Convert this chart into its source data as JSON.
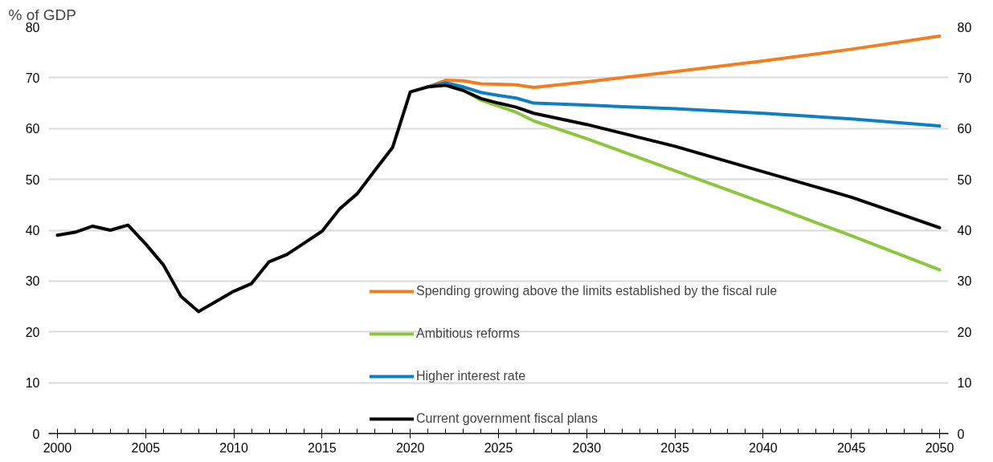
{
  "chart_data": {
    "type": "line",
    "ylabel": "% of GDP",
    "xlim": [
      1999.5,
      2050.5
    ],
    "xticks": [
      2000,
      {
        "value": 2001,
        "label": null
      },
      {
        "value": 2002,
        "label": null
      },
      {
        "value": 2003,
        "label": null
      },
      {
        "value": 2004,
        "label": null
      },
      2005,
      {
        "value": 2006,
        "label": null
      },
      {
        "value": 2007,
        "label": null
      },
      {
        "value": 2008,
        "label": null
      },
      {
        "value": 2009,
        "label": null
      },
      2010,
      {
        "value": 2011,
        "label": null
      },
      {
        "value": 2012,
        "label": null
      },
      {
        "value": 2013,
        "label": null
      },
      {
        "value": 2014,
        "label": null
      },
      2015,
      {
        "value": 2016,
        "label": null
      },
      {
        "value": 2017,
        "label": null
      },
      {
        "value": 2018,
        "label": null
      },
      {
        "value": 2019,
        "label": null
      },
      2020,
      {
        "value": 2021,
        "label": null
      },
      {
        "value": 2022,
        "label": null
      },
      {
        "value": 2023,
        "label": null
      },
      {
        "value": 2024,
        "label": null
      },
      2025,
      {
        "value": 2026,
        "label": null
      },
      {
        "value": 2027,
        "label": null
      },
      {
        "value": 2028,
        "label": null
      },
      {
        "value": 2029,
        "label": null
      },
      2030,
      {
        "value": 2031,
        "label": null
      },
      {
        "value": 2032,
        "label": null
      },
      {
        "value": 2033,
        "label": null
      },
      {
        "value": 2034,
        "label": null
      },
      2035,
      {
        "value": 2036,
        "label": null
      },
      {
        "value": 2037,
        "label": null
      },
      {
        "value": 2038,
        "label": null
      },
      {
        "value": 2039,
        "label": null
      },
      2040,
      {
        "value": 2041,
        "label": null
      },
      {
        "value": 2042,
        "label": null
      },
      {
        "value": 2043,
        "label": null
      },
      {
        "value": 2044,
        "label": null
      },
      2045,
      {
        "value": 2046,
        "label": null
      },
      {
        "value": 2047,
        "label": null
      },
      {
        "value": 2048,
        "label": null
      },
      {
        "value": 2049,
        "label": null
      },
      2050
    ],
    "ylim": [
      0,
      80
    ],
    "yticks": [
      0,
      10,
      20,
      30,
      40,
      50,
      60,
      70,
      80
    ],
    "y2lim": [
      0,
      80
    ],
    "y2ticks": [
      0,
      10,
      20,
      30,
      40,
      50,
      60,
      70,
      80
    ],
    "grid": "y",
    "legend": "bottom",
    "line_style": "solid",
    "series": [
      {
        "name": "Spending growing above the limits established by the fiscal rule",
        "color": "#f47d20",
        "x": [
          2021,
          2022,
          2023,
          2024,
          2025,
          2026,
          2027,
          2030,
          2035,
          2040,
          2045,
          2050
        ],
        "values": [
          68.2,
          69.5,
          69.4,
          68.8,
          68.7,
          68.6,
          68.1,
          69.2,
          71.2,
          73.3,
          75.6,
          78.2
        ]
      },
      {
        "name": "Ambitious reforms",
        "color": "#8cc63f",
        "x": [
          2021,
          2022,
          2023,
          2024,
          2025,
          2026,
          2027,
          2030,
          2035,
          2040,
          2045,
          2050
        ],
        "values": [
          68.2,
          68.6,
          67.5,
          65.6,
          64.4,
          63.2,
          61.5,
          58,
          51.7,
          45.4,
          38.9,
          32.2
        ]
      },
      {
        "name": "Higher interest rate",
        "color": "#0f7ec2",
        "x": [
          2021,
          2022,
          2023,
          2024,
          2025,
          2026,
          2027,
          2030,
          2035,
          2040,
          2045,
          2050
        ],
        "values": [
          68.2,
          69,
          68.2,
          67.1,
          66.5,
          66,
          65,
          64.6,
          63.9,
          63,
          61.9,
          60.5
        ]
      },
      {
        "name": "Current government fiscal plans",
        "color": "#000000",
        "x": [
          2000,
          2001,
          2002,
          2003,
          2004,
          2005,
          2006,
          2007,
          2008,
          2009,
          2010,
          2011,
          2012,
          2013,
          2014,
          2015,
          2016,
          2017,
          2018,
          2019,
          2020,
          2021,
          2022,
          2023,
          2024,
          2025,
          2026,
          2027,
          2030,
          2035,
          2040,
          2045,
          2050
        ],
        "values": [
          39,
          39.6,
          40.8,
          40,
          41,
          37.3,
          33.2,
          27,
          24,
          26,
          28,
          29.5,
          33.8,
          35.2,
          37.5,
          39.8,
          44.2,
          47.2,
          51.8,
          56.3,
          67.2,
          68.2,
          68.5,
          67.5,
          65.9,
          65,
          64.2,
          63,
          60.8,
          56.5,
          51.5,
          46.5,
          40.5
        ]
      }
    ]
  }
}
